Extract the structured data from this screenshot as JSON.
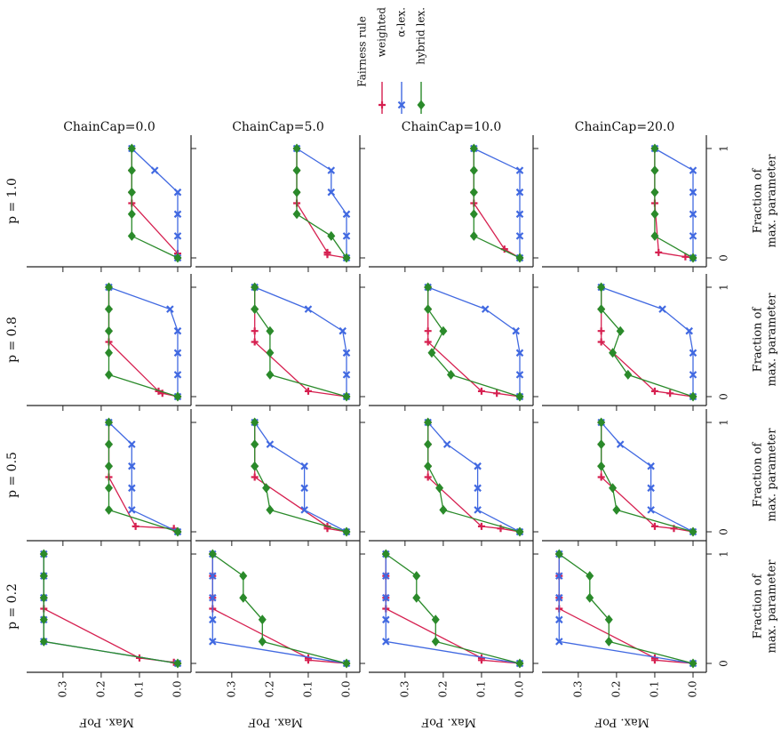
{
  "legend": {
    "title": "Fairness rule",
    "items": [
      {
        "label": "weighted",
        "color": "#d62050",
        "marker": "plus"
      },
      {
        "label": "α-lex.",
        "color": "#4169e1",
        "marker": "x"
      },
      {
        "label": "hybrid lex.",
        "color": "#2a8a2a",
        "marker": "diamond"
      }
    ]
  },
  "chart_data": {
    "type": "line",
    "layout": "faceted grid (rotated 90°): rows by p, columns by ChainCap",
    "xlabel": "Fraction of max. parameter",
    "ylabel": "Max. PoF",
    "xticks": [
      0,
      1
    ],
    "yticks": [
      0.0,
      0.1,
      0.2,
      0.3
    ],
    "ylim": [
      0,
      0.36
    ],
    "chain_caps": [
      "ChainCap=0.0",
      "ChainCap=5.0",
      "ChainCap=10.0",
      "ChainCap=20.0"
    ],
    "p_labels": [
      "p = 1.0",
      "p = 0.8",
      "p = 0.5",
      "p = 0.2"
    ],
    "panels": [
      [
        {
          "weighted": {
            "x": [
              0,
              0.04,
              0.5,
              0.6,
              0.8,
              1.0
            ],
            "y": [
              0.0,
              0.0,
              0.12,
              0.12,
              0.12,
              0.12
            ]
          },
          "alpha_lex": {
            "x": [
              0,
              0.2,
              0.4,
              0.6,
              0.8,
              1.0
            ],
            "y": [
              0.0,
              0.0,
              0.0,
              0.0,
              0.06,
              0.12
            ]
          },
          "hybrid_lex": {
            "x": [
              0,
              0.2,
              0.4,
              0.6,
              0.8,
              1.0
            ],
            "y": [
              0.0,
              0.12,
              0.12,
              0.12,
              0.12,
              0.12
            ]
          }
        },
        {
          "weighted": {
            "x": [
              0,
              0.03,
              0.05,
              0.5,
              0.6,
              0.8,
              1.0
            ],
            "y": [
              0.0,
              0.05,
              0.05,
              0.13,
              0.13,
              0.13,
              0.13
            ]
          },
          "alpha_lex": {
            "x": [
              0,
              0.2,
              0.4,
              0.6,
              0.8,
              1.0
            ],
            "y": [
              0.0,
              0.0,
              0.0,
              0.04,
              0.04,
              0.13
            ]
          },
          "hybrid_lex": {
            "x": [
              0,
              0.2,
              0.4,
              0.6,
              0.8,
              1.0
            ],
            "y": [
              0.0,
              0.04,
              0.13,
              0.13,
              0.13,
              0.13
            ]
          }
        },
        {
          "weighted": {
            "x": [
              0,
              0.08,
              0.5,
              0.6,
              0.8,
              1.0
            ],
            "y": [
              0.0,
              0.04,
              0.12,
              0.12,
              0.12,
              0.12
            ]
          },
          "alpha_lex": {
            "x": [
              0,
              0.2,
              0.4,
              0.6,
              0.8,
              1.0
            ],
            "y": [
              0.0,
              0.0,
              0.0,
              0.0,
              0.0,
              0.12
            ]
          },
          "hybrid_lex": {
            "x": [
              0,
              0.2,
              0.4,
              0.6,
              0.8,
              1.0
            ],
            "y": [
              0.0,
              0.12,
              0.12,
              0.12,
              0.12,
              0.12
            ]
          }
        },
        {
          "weighted": {
            "x": [
              0,
              0.01,
              0.05,
              0.5,
              0.6,
              0.8,
              1.0
            ],
            "y": [
              0.0,
              0.02,
              0.09,
              0.1,
              0.1,
              0.1,
              0.1
            ]
          },
          "alpha_lex": {
            "x": [
              0,
              0.2,
              0.4,
              0.6,
              0.8,
              1.0
            ],
            "y": [
              0.0,
              0.0,
              0.0,
              0.0,
              0.0,
              0.1
            ]
          },
          "hybrid_lex": {
            "x": [
              0,
              0.2,
              0.4,
              0.6,
              0.8,
              1.0
            ],
            "y": [
              0.0,
              0.1,
              0.1,
              0.1,
              0.1,
              0.1
            ]
          }
        }
      ],
      [
        {
          "weighted": {
            "x": [
              0,
              0.03,
              0.05,
              0.5,
              0.6,
              0.8,
              1.0
            ],
            "y": [
              0.0,
              0.04,
              0.05,
              0.18,
              0.18,
              0.18,
              0.18
            ]
          },
          "alpha_lex": {
            "x": [
              0,
              0.2,
              0.4,
              0.6,
              0.8,
              1.0
            ],
            "y": [
              0.0,
              0.0,
              0.0,
              0.0,
              0.02,
              0.18
            ]
          },
          "hybrid_lex": {
            "x": [
              0,
              0.2,
              0.4,
              0.6,
              0.8,
              1.0
            ],
            "y": [
              0.0,
              0.18,
              0.18,
              0.18,
              0.18,
              0.18
            ]
          }
        },
        {
          "weighted": {
            "x": [
              0,
              0.05,
              0.5,
              0.6,
              0.8,
              1.0
            ],
            "y": [
              0.0,
              0.1,
              0.24,
              0.24,
              0.24,
              0.24
            ]
          },
          "alpha_lex": {
            "x": [
              0,
              0.2,
              0.4,
              0.6,
              0.8,
              1.0
            ],
            "y": [
              0.0,
              0.0,
              0.0,
              0.01,
              0.1,
              0.24
            ]
          },
          "hybrid_lex": {
            "x": [
              0,
              0.2,
              0.4,
              0.6,
              0.8,
              1.0
            ],
            "y": [
              0.0,
              0.2,
              0.2,
              0.2,
              0.24,
              0.24
            ]
          }
        },
        {
          "weighted": {
            "x": [
              0,
              0.03,
              0.05,
              0.5,
              0.6,
              0.8,
              1.0
            ],
            "y": [
              0.0,
              0.06,
              0.1,
              0.24,
              0.24,
              0.24,
              0.24
            ]
          },
          "alpha_lex": {
            "x": [
              0,
              0.2,
              0.4,
              0.6,
              0.8,
              1.0
            ],
            "y": [
              0.0,
              0.0,
              0.0,
              0.01,
              0.09,
              0.24
            ]
          },
          "hybrid_lex": {
            "x": [
              0,
              0.2,
              0.4,
              0.6,
              0.8,
              1.0
            ],
            "y": [
              0.0,
              0.18,
              0.23,
              0.2,
              0.24,
              0.24
            ]
          }
        },
        {
          "weighted": {
            "x": [
              0,
              0.03,
              0.05,
              0.5,
              0.6,
              0.8,
              1.0
            ],
            "y": [
              0.0,
              0.06,
              0.1,
              0.24,
              0.24,
              0.24,
              0.24
            ]
          },
          "alpha_lex": {
            "x": [
              0,
              0.2,
              0.4,
              0.6,
              0.8,
              1.0
            ],
            "y": [
              0.0,
              0.0,
              0.0,
              0.01,
              0.08,
              0.24
            ]
          },
          "hybrid_lex": {
            "x": [
              0,
              0.2,
              0.4,
              0.6,
              0.8,
              1.0
            ],
            "y": [
              0.0,
              0.17,
              0.21,
              0.19,
              0.24,
              0.24
            ]
          }
        }
      ],
      [
        {
          "weighted": {
            "x": [
              0,
              0.03,
              0.05,
              0.5,
              0.6,
              0.8,
              1.0
            ],
            "y": [
              0.0,
              0.01,
              0.11,
              0.18,
              0.18,
              0.18,
              0.18
            ]
          },
          "alpha_lex": {
            "x": [
              0,
              0.2,
              0.4,
              0.6,
              0.8,
              1.0
            ],
            "y": [
              0.0,
              0.12,
              0.12,
              0.12,
              0.12,
              0.18
            ]
          },
          "hybrid_lex": {
            "x": [
              0,
              0.2,
              0.4,
              0.6,
              0.8,
              1.0
            ],
            "y": [
              0.0,
              0.18,
              0.18,
              0.18,
              0.18,
              0.18
            ]
          }
        },
        {
          "weighted": {
            "x": [
              0,
              0.03,
              0.05,
              0.5,
              0.6,
              0.8,
              1.0
            ],
            "y": [
              0.0,
              0.05,
              0.05,
              0.24,
              0.24,
              0.24,
              0.24
            ]
          },
          "alpha_lex": {
            "x": [
              0,
              0.2,
              0.4,
              0.6,
              0.8,
              1.0
            ],
            "y": [
              0.0,
              0.11,
              0.11,
              0.11,
              0.2,
              0.24
            ]
          },
          "hybrid_lex": {
            "x": [
              0,
              0.2,
              0.4,
              0.6,
              0.8,
              1.0
            ],
            "y": [
              0.0,
              0.2,
              0.21,
              0.24,
              0.24,
              0.24
            ]
          }
        },
        {
          "weighted": {
            "x": [
              0,
              0.03,
              0.05,
              0.5,
              0.6,
              0.8,
              1.0
            ],
            "y": [
              0.0,
              0.05,
              0.1,
              0.24,
              0.24,
              0.24,
              0.24
            ]
          },
          "alpha_lex": {
            "x": [
              0,
              0.2,
              0.4,
              0.6,
              0.8,
              1.0
            ],
            "y": [
              0.0,
              0.11,
              0.11,
              0.11,
              0.19,
              0.24
            ]
          },
          "hybrid_lex": {
            "x": [
              0,
              0.2,
              0.4,
              0.6,
              0.8,
              1.0
            ],
            "y": [
              0.0,
              0.2,
              0.21,
              0.24,
              0.24,
              0.24
            ]
          }
        },
        {
          "weighted": {
            "x": [
              0,
              0.03,
              0.05,
              0.5,
              0.6,
              0.8,
              1.0
            ],
            "y": [
              0.0,
              0.05,
              0.1,
              0.24,
              0.24,
              0.24,
              0.24
            ]
          },
          "alpha_lex": {
            "x": [
              0,
              0.2,
              0.4,
              0.6,
              0.8,
              1.0
            ],
            "y": [
              0.0,
              0.11,
              0.11,
              0.11,
              0.19,
              0.24
            ]
          },
          "hybrid_lex": {
            "x": [
              0,
              0.2,
              0.4,
              0.6,
              0.8,
              1.0
            ],
            "y": [
              0.0,
              0.2,
              0.21,
              0.24,
              0.24,
              0.24
            ]
          }
        }
      ],
      [
        {
          "weighted": {
            "x": [
              0,
              0.01,
              0.05,
              0.5,
              0.6,
              0.8,
              1.0
            ],
            "y": [
              0.0,
              0.01,
              0.1,
              0.35,
              0.35,
              0.35,
              0.35
            ]
          },
          "alpha_lex": {
            "x": [
              0,
              0.2,
              0.4,
              0.6,
              0.8,
              1.0
            ],
            "y": [
              0.0,
              0.35,
              0.35,
              0.35,
              0.35,
              0.35
            ]
          },
          "hybrid_lex": {
            "x": [
              0,
              0.2,
              0.4,
              0.6,
              0.8,
              1.0
            ],
            "y": [
              0.0,
              0.35,
              0.35,
              0.35,
              0.35,
              0.35
            ]
          }
        },
        {
          "weighted": {
            "x": [
              0,
              0.03,
              0.05,
              0.5,
              0.6,
              0.8,
              1.0
            ],
            "y": [
              0.0,
              0.1,
              0.1,
              0.35,
              0.35,
              0.35,
              0.35
            ]
          },
          "alpha_lex": {
            "x": [
              0,
              0.2,
              0.4,
              0.6,
              0.8,
              1.0
            ],
            "y": [
              0.0,
              0.35,
              0.35,
              0.35,
              0.35,
              0.35
            ]
          },
          "hybrid_lex": {
            "x": [
              0,
              0.2,
              0.4,
              0.6,
              0.8,
              1.0
            ],
            "y": [
              0.0,
              0.22,
              0.22,
              0.27,
              0.27,
              0.35
            ]
          }
        },
        {
          "weighted": {
            "x": [
              0,
              0.03,
              0.05,
              0.5,
              0.6,
              0.8,
              1.0
            ],
            "y": [
              0.0,
              0.1,
              0.1,
              0.35,
              0.35,
              0.35,
              0.35
            ]
          },
          "alpha_lex": {
            "x": [
              0,
              0.2,
              0.4,
              0.6,
              0.8,
              1.0
            ],
            "y": [
              0.0,
              0.35,
              0.35,
              0.35,
              0.35,
              0.35
            ]
          },
          "hybrid_lex": {
            "x": [
              0,
              0.2,
              0.4,
              0.6,
              0.8,
              1.0
            ],
            "y": [
              0.0,
              0.22,
              0.22,
              0.27,
              0.27,
              0.35
            ]
          }
        },
        {
          "weighted": {
            "x": [
              0,
              0.03,
              0.05,
              0.5,
              0.6,
              0.8,
              1.0
            ],
            "y": [
              0.0,
              0.1,
              0.1,
              0.35,
              0.35,
              0.35,
              0.35
            ]
          },
          "alpha_lex": {
            "x": [
              0,
              0.2,
              0.4,
              0.6,
              0.8,
              1.0
            ],
            "y": [
              0.0,
              0.35,
              0.35,
              0.35,
              0.35,
              0.35
            ]
          },
          "hybrid_lex": {
            "x": [
              0,
              0.2,
              0.4,
              0.6,
              0.8,
              1.0
            ],
            "y": [
              0.0,
              0.22,
              0.22,
              0.27,
              0.27,
              0.35
            ]
          }
        }
      ]
    ]
  }
}
